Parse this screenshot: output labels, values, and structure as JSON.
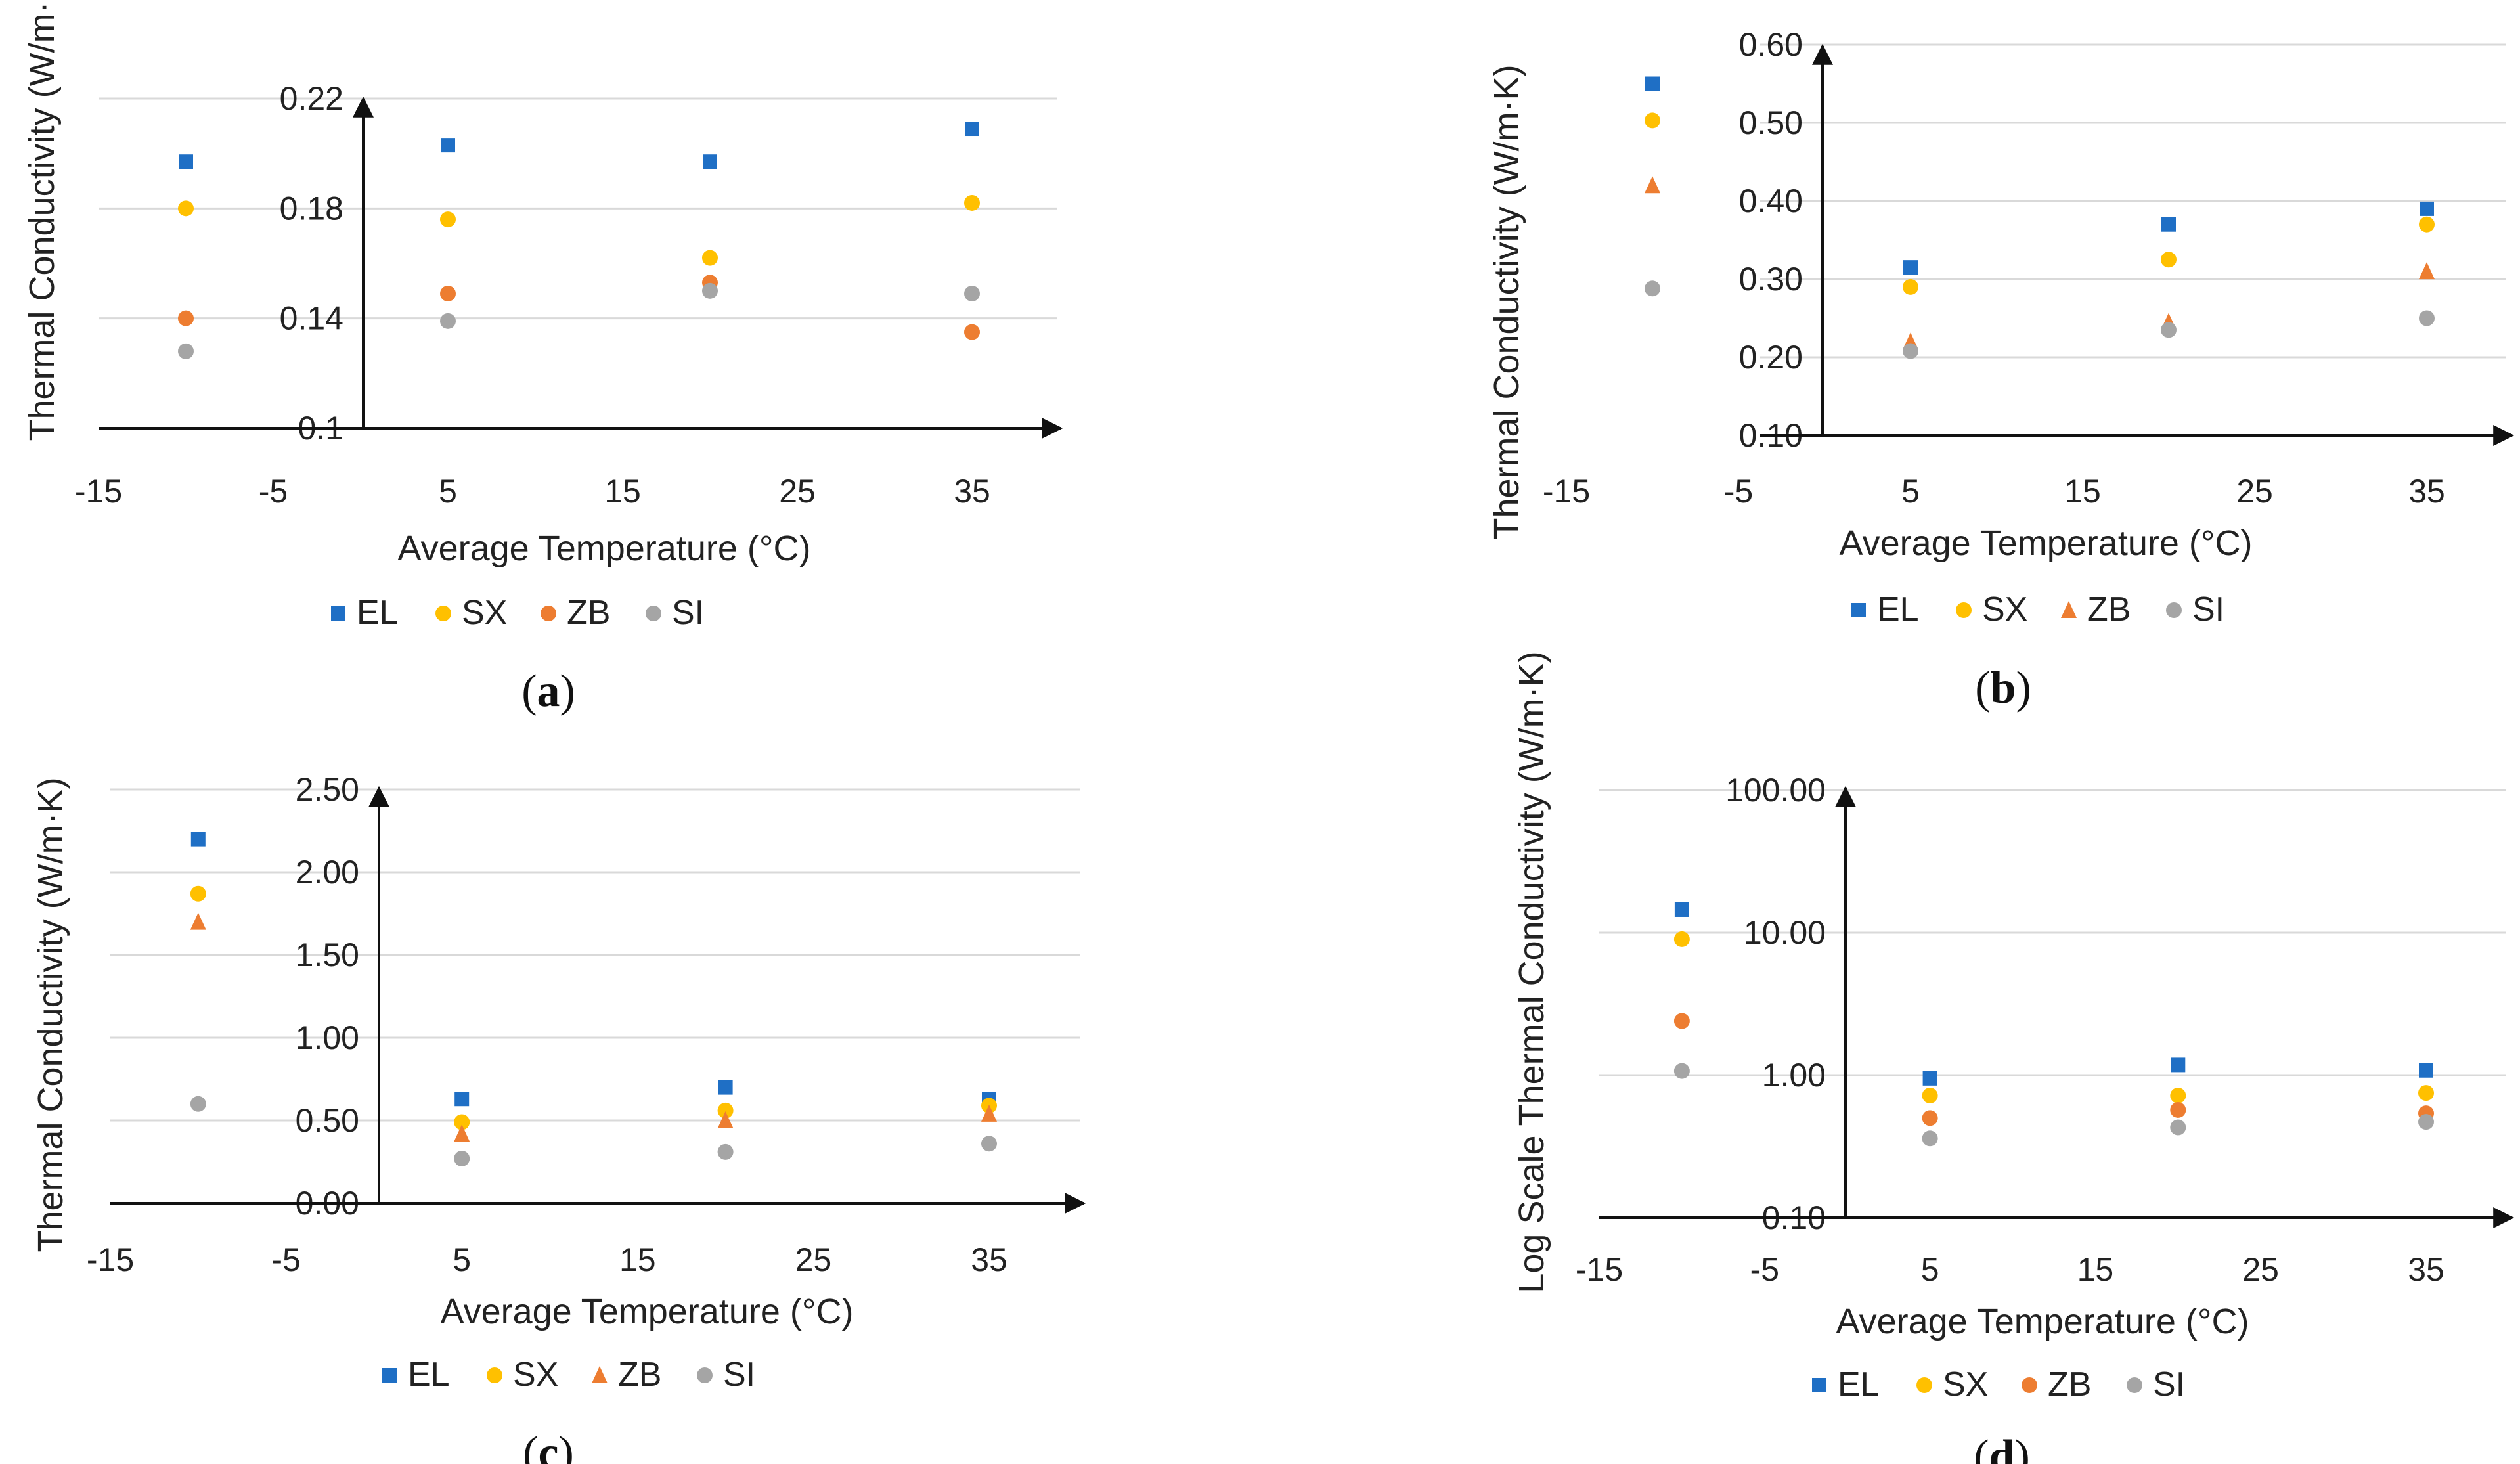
{
  "chart_data": [
    {
      "id": "a",
      "type": "scatter",
      "caption": "a",
      "xlabel": "Average Temperature (°C)",
      "ylabel": "Thermal Conductivity (W/m·K)",
      "xlim": [
        -15,
        40
      ],
      "ylim": [
        0.1,
        0.22
      ],
      "xticks": [
        "-15",
        "-5",
        "5",
        "15",
        "25",
        "35"
      ],
      "yticks": [
        "0.1",
        "0.14",
        "0.18",
        "0.22"
      ],
      "x": [
        -10,
        5,
        20,
        35
      ],
      "series": [
        {
          "name": "EL",
          "marker": "square",
          "color": "#1f6fc5",
          "values": [
            0.197,
            0.203,
            0.197,
            0.209
          ]
        },
        {
          "name": "SX",
          "marker": "circle",
          "color": "#ffc000",
          "values": [
            0.18,
            0.176,
            0.162,
            0.182
          ]
        },
        {
          "name": "ZB",
          "marker": "circle",
          "color": "#ed7d31",
          "values": [
            0.14,
            0.149,
            0.153,
            0.135
          ]
        },
        {
          "name": "SI",
          "marker": "circle",
          "color": "#a5a5a5",
          "values": [
            0.128,
            0.139,
            0.15,
            0.149
          ]
        }
      ]
    },
    {
      "id": "b",
      "type": "scatter",
      "caption": "b",
      "xlabel": "Average Temperature (°C)",
      "ylabel": "Thermal Conductivity (W/m·K)",
      "xlim": [
        -15,
        40
      ],
      "ylim": [
        0.1,
        0.6
      ],
      "xticks": [
        "-15",
        "-5",
        "5",
        "15",
        "25",
        "35"
      ],
      "yticks": [
        "0.10",
        "0.20",
        "0.30",
        "0.40",
        "0.50",
        "0.60"
      ],
      "x": [
        -10,
        5,
        20,
        35
      ],
      "series": [
        {
          "name": "EL",
          "marker": "square",
          "color": "#1f6fc5",
          "values": [
            0.55,
            0.315,
            0.37,
            0.39
          ]
        },
        {
          "name": "SX",
          "marker": "circle",
          "color": "#ffc000",
          "values": [
            0.503,
            0.29,
            0.325,
            0.37
          ]
        },
        {
          "name": "ZB",
          "marker": "triangle",
          "color": "#ed7d31",
          "values": [
            0.42,
            0.22,
            0.245,
            0.31
          ]
        },
        {
          "name": "SI",
          "marker": "circle",
          "color": "#a5a5a5",
          "values": [
            0.288,
            0.208,
            0.235,
            0.25
          ]
        }
      ]
    },
    {
      "id": "c",
      "type": "scatter",
      "caption": "c",
      "xlabel": "Average Temperature (°C)",
      "ylabel": "Thermal Conductivity (W/m·K)",
      "xlim": [
        -15,
        40
      ],
      "ylim": [
        0,
        2.5
      ],
      "xticks": [
        "-15",
        "-5",
        "5",
        "15",
        "25",
        "35"
      ],
      "yticks": [
        "0.00",
        "0.50",
        "1.00",
        "1.50",
        "2.00",
        "2.50"
      ],
      "x": [
        -10,
        5,
        20,
        35
      ],
      "series": [
        {
          "name": "EL",
          "marker": "square",
          "color": "#1f6fc5",
          "values": [
            2.2,
            0.63,
            0.7,
            0.63
          ]
        },
        {
          "name": "SX",
          "marker": "circle",
          "color": "#ffc000",
          "values": [
            1.87,
            0.49,
            0.56,
            0.59
          ]
        },
        {
          "name": "ZB",
          "marker": "triangle",
          "color": "#ed7d31",
          "values": [
            1.7,
            0.42,
            0.5,
            0.54
          ]
        },
        {
          "name": "SI",
          "marker": "circle",
          "color": "#a5a5a5",
          "values": [
            0.6,
            0.27,
            0.31,
            0.36
          ]
        }
      ]
    },
    {
      "id": "d",
      "type": "scatter",
      "caption": "d",
      "xlabel": "Average Temperature (°C)",
      "ylabel": "Log Scale Thermal Conductivity (W/m·K)",
      "yscale": "log",
      "xlim": [
        -15,
        40
      ],
      "ylim": [
        0.1,
        100
      ],
      "xticks": [
        "-15",
        "-5",
        "5",
        "15",
        "25",
        "35"
      ],
      "yticks": [
        "0.10",
        "1.00",
        "10.00",
        "100.00"
      ],
      "x": [
        -10,
        5,
        20,
        35
      ],
      "series": [
        {
          "name": "EL",
          "marker": "square",
          "color": "#1f6fc5",
          "values": [
            14.5,
            0.95,
            1.18,
            1.08
          ]
        },
        {
          "name": "SX",
          "marker": "circle",
          "color": "#ffc000",
          "values": [
            9.0,
            0.72,
            0.72,
            0.75
          ]
        },
        {
          "name": "ZB",
          "marker": "circle",
          "color": "#ed7d31",
          "values": [
            2.4,
            0.5,
            0.57,
            0.54
          ]
        },
        {
          "name": "SI",
          "marker": "circle",
          "color": "#a5a5a5",
          "values": [
            1.07,
            0.36,
            0.43,
            0.47
          ]
        }
      ]
    }
  ]
}
